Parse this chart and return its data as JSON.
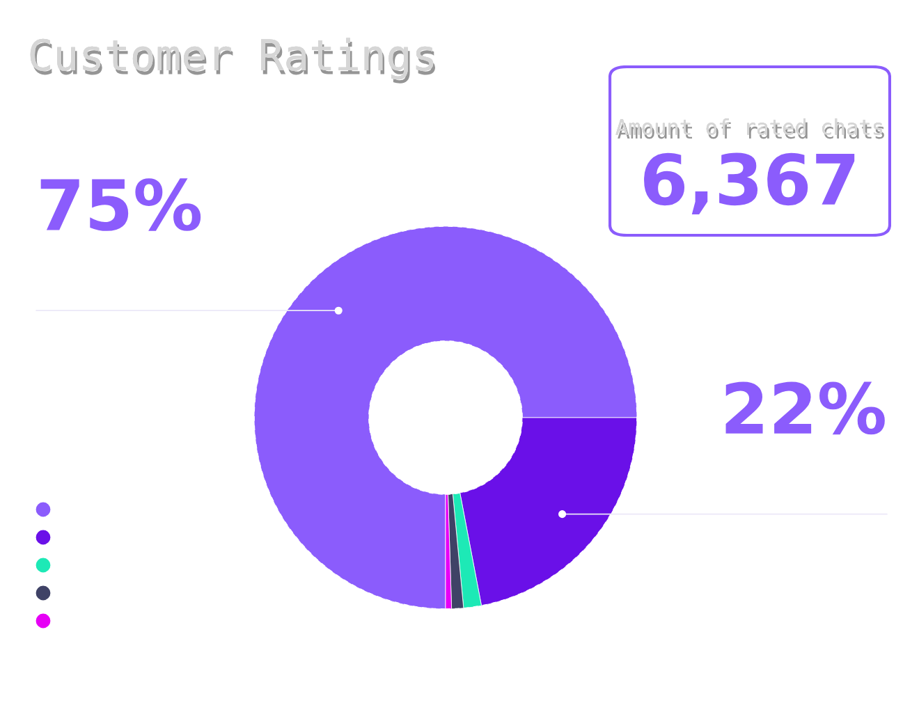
{
  "chart_data": [
    {
      "type": "donut",
      "title": "Customer Ratings",
      "categories": [
        null,
        null,
        null,
        null,
        null
      ],
      "values": [
        75,
        22,
        1.5,
        1,
        0.5
      ],
      "colors": [
        "#8b5cfc",
        "#6a10e8",
        "#1de9b6",
        "#3f4266",
        "#e600f5"
      ],
      "value_labels": [
        "75%",
        "22%",
        null,
        null,
        null
      ]
    },
    {
      "type": "other",
      "title": "Amount of rated chats",
      "annotations": [
        "6,367"
      ]
    }
  ]
}
